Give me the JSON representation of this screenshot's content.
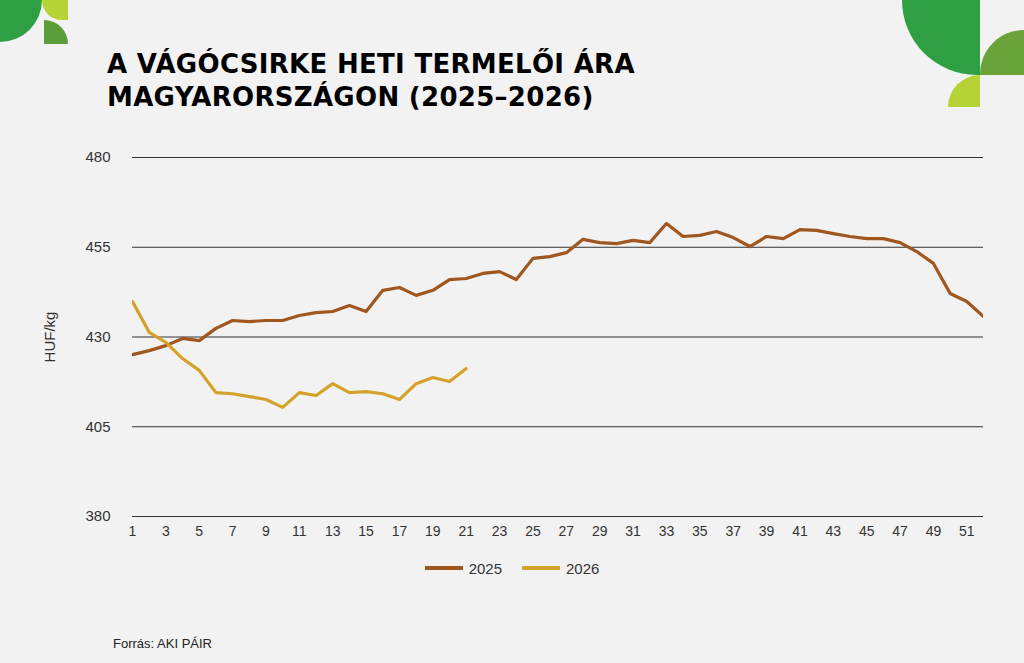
{
  "chart_data": {
    "type": "line",
    "title": "A VÁGÓCSIRKE HETI TERMELŐI ÁRA MAGYARORSZÁGON (2025–2026)",
    "ylabel": "HUF/kg",
    "source": "Forrás: AKI PÁIR",
    "x": [
      1,
      2,
      3,
      4,
      5,
      6,
      7,
      8,
      9,
      10,
      11,
      12,
      13,
      14,
      15,
      16,
      17,
      18,
      19,
      20,
      21,
      22,
      23,
      24,
      25,
      26,
      27,
      28,
      29,
      30,
      31,
      32,
      33,
      34,
      35,
      36,
      37,
      38,
      39,
      40,
      41,
      42,
      43,
      44,
      45,
      46,
      47,
      48,
      49,
      50,
      51,
      52
    ],
    "series": [
      {
        "name": "2025",
        "color": "#a0561f",
        "values": [
          425.1,
          426.2,
          427.6,
          429.6,
          429.0,
          432.4,
          434.6,
          434.3,
          434.6,
          434.6,
          436.0,
          436.8,
          437.1,
          438.8,
          437.1,
          443.0,
          443.8,
          441.6,
          443.0,
          446.0,
          446.3,
          447.7,
          448.2,
          446.0,
          451.9,
          452.4,
          453.5,
          457.2,
          456.3,
          456.0,
          456.9,
          456.3,
          461.6,
          458.0,
          458.3,
          459.4,
          457.7,
          455.2,
          458.0,
          457.4,
          459.9,
          459.7,
          458.8,
          458.0,
          457.4,
          457.4,
          456.3,
          453.8,
          450.5,
          442.1,
          439.9,
          435.7
        ]
      },
      {
        "name": "2026",
        "color": "#d4a22a",
        "values": [
          439.9,
          431.3,
          428.5,
          424.0,
          420.7,
          414.5,
          414.2,
          413.4,
          412.6,
          410.4,
          414.5,
          413.7,
          417.0,
          414.5,
          414.8,
          414.2,
          412.6,
          417.0,
          418.7,
          417.6,
          421.2,
          null,
          null,
          null,
          null,
          null,
          null,
          null,
          null,
          null,
          null,
          null,
          null,
          null,
          null,
          null,
          null,
          null,
          null,
          null,
          null,
          null,
          null,
          null,
          null,
          null,
          null,
          null,
          null,
          null,
          null,
          null
        ]
      }
    ],
    "xlim": [
      1,
      52
    ],
    "xticks": [
      1,
      3,
      5,
      7,
      9,
      11,
      13,
      15,
      17,
      19,
      21,
      23,
      25,
      27,
      29,
      31,
      33,
      35,
      37,
      39,
      41,
      43,
      45,
      47,
      49,
      51
    ],
    "ylim": [
      380,
      480
    ],
    "yticks": [
      380,
      405,
      430,
      455,
      480
    ],
    "grid": true,
    "legend": "bottom"
  }
}
